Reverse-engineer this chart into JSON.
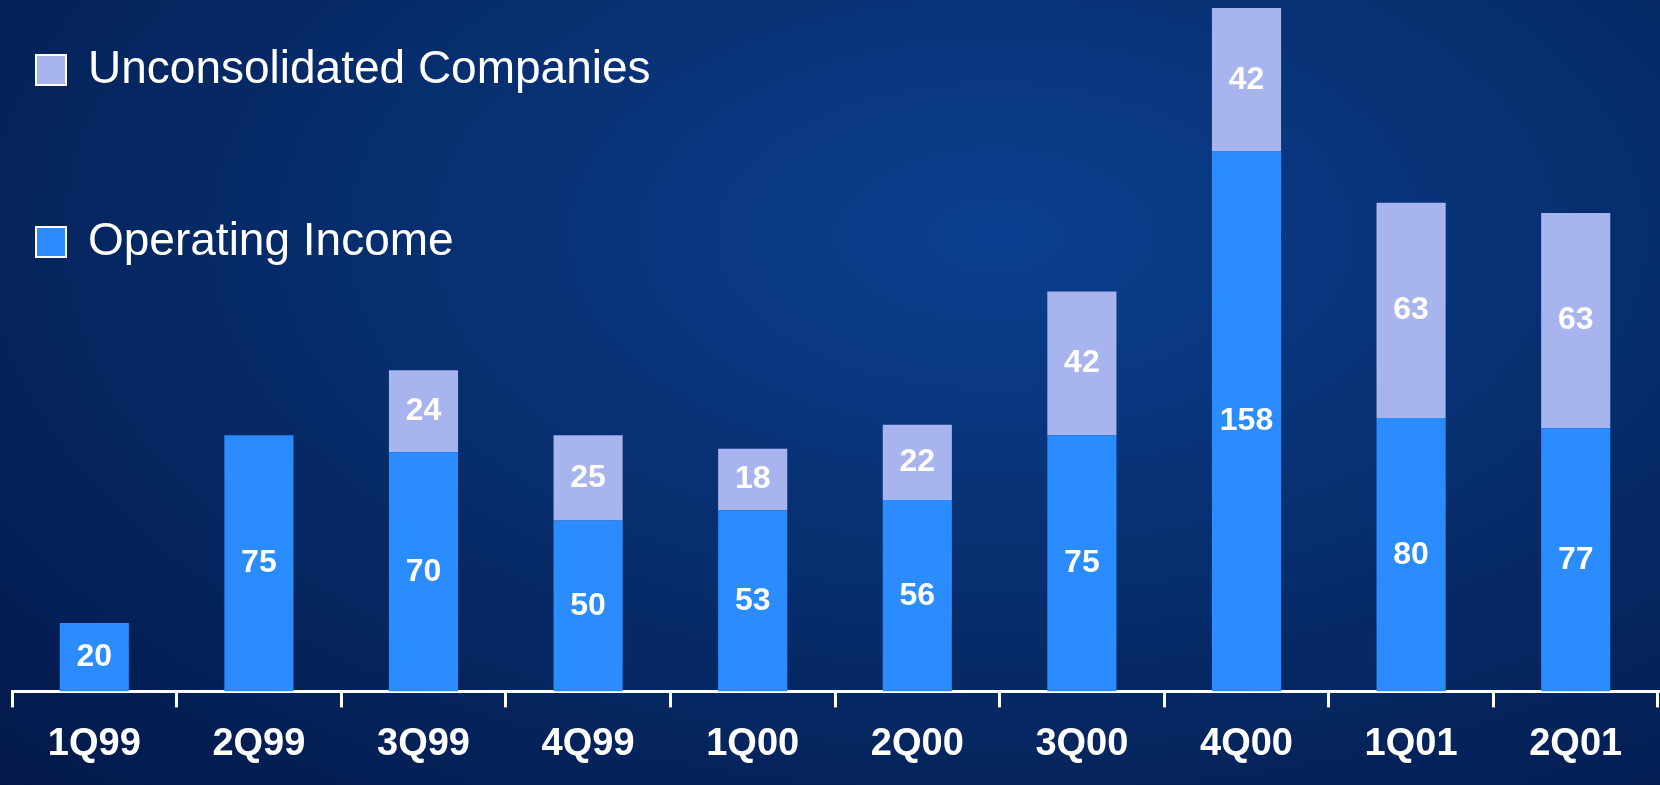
{
  "chart_data": {
    "type": "bar",
    "stacked": true,
    "data_labels": true,
    "legend": "top left",
    "categories": [
      "1Q99",
      "2Q99",
      "3Q99",
      "4Q99",
      "1Q00",
      "2Q00",
      "3Q00",
      "4Q00",
      "1Q01",
      "2Q01"
    ],
    "series": [
      {
        "name": "Operating Income",
        "color": "#2a8cff",
        "values": [
          20,
          75,
          70,
          50,
          53,
          56,
          75,
          158,
          80,
          77
        ]
      },
      {
        "name": "Unconsolidated Companies",
        "color": "#a8b4ee",
        "values": [
          null,
          null,
          24,
          25,
          18,
          22,
          42,
          42,
          63,
          63
        ]
      }
    ]
  }
}
